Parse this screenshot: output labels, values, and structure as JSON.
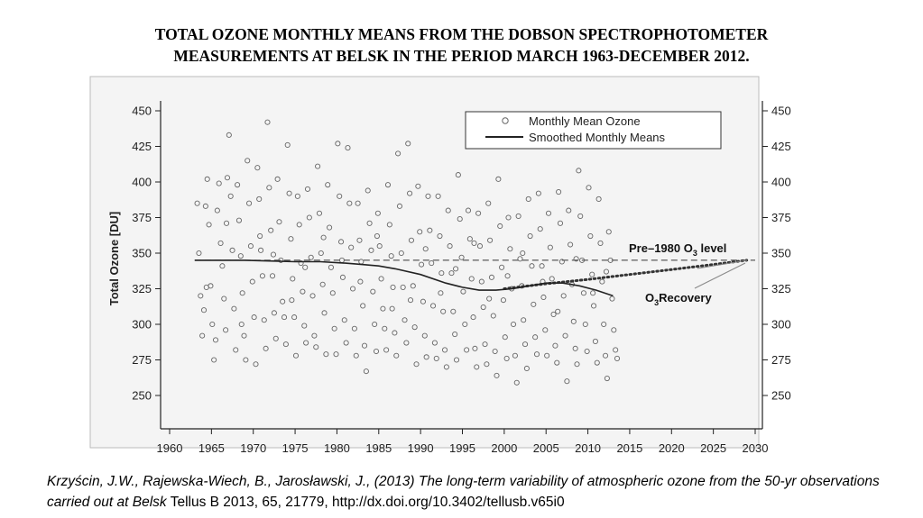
{
  "title_lines": [
    "TOTAL OZONE MONTHLY MEANS FROM THE DOBSON SPECTROPHOTOMETER",
    "MEASUREMENTS AT BELSK IN THE PERIOD MARCH 1963-DECEMBER 2012."
  ],
  "citation": {
    "italic": "Krzyścin, J.W., Rajewska-Wiech, B., Jarosławski, J., (2013) The long-term variability of atmospheric ozone from the 50-yr observations carried out at Belsk",
    "plain": " Tellus B 2013, 65, 21779, http://dx.doi.org/10.3402/tellusb.v65i0"
  },
  "chart_data": {
    "type": "scatter",
    "ylabel": "Total Ozone [DU]",
    "xlabel": "",
    "xlim": [
      1960,
      2030
    ],
    "ylim": [
      230,
      460
    ],
    "x_ticks": [
      1960,
      1965,
      1970,
      1975,
      1980,
      1985,
      1990,
      1995,
      2000,
      2005,
      2010,
      2015,
      2020,
      2025,
      2030
    ],
    "y_ticks": [
      250,
      275,
      300,
      325,
      350,
      375,
      400,
      425,
      450
    ],
    "grid": false,
    "legend": {
      "position": "top-right",
      "entries": [
        "Monthly Mean Ozone",
        "Smoothed Monthly Means"
      ]
    },
    "annotations": [
      {
        "text_parts": [
          "Pre–1980 O",
          "3",
          " level"
        ],
        "x": 2022,
        "y": 350
      },
      {
        "text_parts": [
          "O",
          "3",
          "Recovery"
        ],
        "x": 2019,
        "y": 318
      }
    ],
    "reference_line": {
      "name": "Pre–1980 O3 level",
      "y": 345,
      "x": [
        1963,
        2030
      ],
      "style": "dashed"
    },
    "smoothed_series": {
      "name": "Smoothed Monthly Means",
      "x": [
        1963,
        1966,
        1969,
        1972,
        1975,
        1978,
        1981,
        1983,
        1985,
        1987,
        1990,
        1993,
        1995,
        1997,
        1999,
        2001,
        2003,
        2005,
        2007,
        2009,
        2011,
        2013
      ],
      "y": [
        345,
        345,
        345,
        344.5,
        344,
        344,
        343,
        342,
        341,
        339,
        335,
        329,
        326,
        324,
        324,
        325,
        327,
        329,
        329,
        327,
        324,
        320
      ]
    },
    "recovery_series": {
      "name": "O3 Recovery",
      "style": "dotted",
      "x": [
        2000,
        2005,
        2010,
        2015,
        2020,
        2025,
        2029
      ],
      "y": [
        325,
        328.5,
        331.5,
        335,
        338.5,
        342,
        345
      ]
    },
    "scatter_series": {
      "name": "Monthly Mean Ozone",
      "points": [
        [
          1963.3,
          385
        ],
        [
          1963.5,
          350
        ],
        [
          1963.7,
          320
        ],
        [
          1963.9,
          292
        ],
        [
          1964.1,
          310
        ],
        [
          1964.3,
          383
        ],
        [
          1964.5,
          402
        ],
        [
          1964.7,
          370
        ],
        [
          1964.9,
          327
        ],
        [
          1965.1,
          300
        ],
        [
          1965.3,
          275
        ],
        [
          1965.5,
          289
        ],
        [
          1965.7,
          380
        ],
        [
          1965.9,
          399
        ],
        [
          1966.1,
          357
        ],
        [
          1966.3,
          341
        ],
        [
          1966.5,
          318
        ],
        [
          1966.7,
          296
        ],
        [
          1966.9,
          403
        ],
        [
          1967.1,
          433
        ],
        [
          1967.3,
          390
        ],
        [
          1967.5,
          352
        ],
        [
          1967.7,
          311
        ],
        [
          1967.9,
          282
        ],
        [
          1968.1,
          398
        ],
        [
          1968.3,
          373
        ],
        [
          1968.5,
          348
        ],
        [
          1968.7,
          322
        ],
        [
          1968.9,
          292
        ],
        [
          1969.1,
          275
        ],
        [
          1969.3,
          415
        ],
        [
          1969.5,
          385
        ],
        [
          1969.7,
          355
        ],
        [
          1969.9,
          330
        ],
        [
          1970.1,
          305
        ],
        [
          1970.3,
          272
        ],
        [
          1970.5,
          410
        ],
        [
          1970.7,
          388
        ],
        [
          1970.9,
          352
        ],
        [
          1971.1,
          334
        ],
        [
          1971.3,
          303
        ],
        [
          1971.5,
          283
        ],
        [
          1971.7,
          442
        ],
        [
          1971.9,
          396
        ],
        [
          1972.1,
          366
        ],
        [
          1972.3,
          334
        ],
        [
          1972.5,
          308
        ],
        [
          1972.7,
          290
        ],
        [
          1972.9,
          402
        ],
        [
          1973.1,
          372
        ],
        [
          1973.3,
          345
        ],
        [
          1973.5,
          316
        ],
        [
          1973.7,
          305
        ],
        [
          1973.9,
          286
        ],
        [
          1974.1,
          426
        ],
        [
          1974.3,
          392
        ],
        [
          1974.5,
          360
        ],
        [
          1974.7,
          332
        ],
        [
          1974.9,
          305
        ],
        [
          1975.1,
          278
        ],
        [
          1975.3,
          390
        ],
        [
          1975.5,
          370
        ],
        [
          1975.7,
          343
        ],
        [
          1975.9,
          323
        ],
        [
          1976.1,
          299
        ],
        [
          1976.3,
          287
        ],
        [
          1976.5,
          395
        ],
        [
          1976.7,
          375
        ],
        [
          1976.9,
          347
        ],
        [
          1977.1,
          320
        ],
        [
          1977.3,
          292
        ],
        [
          1977.5,
          284
        ],
        [
          1977.7,
          411
        ],
        [
          1977.9,
          378
        ],
        [
          1978.1,
          350
        ],
        [
          1978.3,
          328
        ],
        [
          1978.5,
          308
        ],
        [
          1978.7,
          279
        ],
        [
          1978.9,
          398
        ],
        [
          1979.1,
          368
        ],
        [
          1979.3,
          340
        ],
        [
          1979.5,
          322
        ],
        [
          1979.7,
          297
        ],
        [
          1979.9,
          279
        ],
        [
          1980.1,
          427
        ],
        [
          1980.3,
          390
        ],
        [
          1980.5,
          358
        ],
        [
          1980.7,
          333
        ],
        [
          1980.9,
          303
        ],
        [
          1981.1,
          287
        ],
        [
          1981.3,
          424
        ],
        [
          1981.5,
          385
        ],
        [
          1981.7,
          354
        ],
        [
          1981.9,
          325
        ],
        [
          1982.1,
          297
        ],
        [
          1982.3,
          278
        ],
        [
          1982.5,
          385
        ],
        [
          1982.7,
          359
        ],
        [
          1982.9,
          344
        ],
        [
          1983.1,
          313
        ],
        [
          1983.3,
          285
        ],
        [
          1983.5,
          267
        ],
        [
          1983.7,
          394
        ],
        [
          1983.9,
          371
        ],
        [
          1984.1,
          352
        ],
        [
          1984.3,
          323
        ],
        [
          1984.5,
          300
        ],
        [
          1984.7,
          281
        ],
        [
          1984.9,
          378
        ],
        [
          1985.1,
          355
        ],
        [
          1985.3,
          332
        ],
        [
          1985.5,
          311
        ],
        [
          1985.7,
          297
        ],
        [
          1985.9,
          282
        ],
        [
          1986.1,
          398
        ],
        [
          1986.3,
          370
        ],
        [
          1986.5,
          348
        ],
        [
          1986.7,
          326
        ],
        [
          1986.9,
          294
        ],
        [
          1987.1,
          278
        ],
        [
          1987.3,
          420
        ],
        [
          1987.5,
          383
        ],
        [
          1987.7,
          350
        ],
        [
          1987.9,
          326
        ],
        [
          1988.1,
          303
        ],
        [
          1988.3,
          287
        ],
        [
          1988.5,
          427
        ],
        [
          1988.7,
          392
        ],
        [
          1988.9,
          359
        ],
        [
          1989.1,
          327
        ],
        [
          1989.3,
          298
        ],
        [
          1989.5,
          272
        ],
        [
          1989.7,
          397
        ],
        [
          1989.9,
          365
        ],
        [
          1990.1,
          342
        ],
        [
          1990.3,
          316
        ],
        [
          1990.5,
          292
        ],
        [
          1990.7,
          277
        ],
        [
          1990.9,
          390
        ],
        [
          1991.1,
          366
        ],
        [
          1991.3,
          343
        ],
        [
          1991.5,
          313
        ],
        [
          1991.7,
          287
        ],
        [
          1991.9,
          276
        ],
        [
          1992.1,
          390
        ],
        [
          1992.3,
          362
        ],
        [
          1992.5,
          336
        ],
        [
          1992.7,
          309
        ],
        [
          1992.9,
          282
        ],
        [
          1993.1,
          270
        ],
        [
          1993.3,
          380
        ],
        [
          1993.5,
          355
        ],
        [
          1993.7,
          336
        ],
        [
          1993.9,
          309
        ],
        [
          1994.1,
          293
        ],
        [
          1994.3,
          275
        ],
        [
          1994.5,
          405
        ],
        [
          1994.7,
          374
        ],
        [
          1994.9,
          347
        ],
        [
          1995.1,
          323
        ],
        [
          1995.3,
          300
        ],
        [
          1995.5,
          282
        ],
        [
          1995.7,
          380
        ],
        [
          1995.9,
          360
        ],
        [
          1996.1,
          332
        ],
        [
          1996.3,
          305
        ],
        [
          1996.5,
          283
        ],
        [
          1996.7,
          270
        ],
        [
          1996.9,
          378
        ],
        [
          1997.1,
          355
        ],
        [
          1997.3,
          330
        ],
        [
          1997.5,
          312
        ],
        [
          1997.7,
          286
        ],
        [
          1997.9,
          272
        ],
        [
          1998.1,
          385
        ],
        [
          1998.3,
          359
        ],
        [
          1998.5,
          333
        ],
        [
          1998.7,
          306
        ],
        [
          1998.9,
          281
        ],
        [
          1999.1,
          264
        ],
        [
          1999.3,
          402
        ],
        [
          1999.5,
          369
        ],
        [
          1999.7,
          340
        ],
        [
          1999.9,
          317
        ],
        [
          2000.1,
          291
        ],
        [
          2000.3,
          276
        ],
        [
          2000.5,
          375
        ],
        [
          2000.7,
          353
        ],
        [
          2000.9,
          325
        ],
        [
          2001.1,
          300
        ],
        [
          2001.3,
          278
        ],
        [
          2001.5,
          259
        ],
        [
          2001.7,
          376
        ],
        [
          2001.9,
          346
        ],
        [
          2002.1,
          327
        ],
        [
          2002.3,
          303
        ],
        [
          2002.5,
          286
        ],
        [
          2002.7,
          269
        ],
        [
          2002.9,
          388
        ],
        [
          2003.1,
          362
        ],
        [
          2003.3,
          341
        ],
        [
          2003.5,
          314
        ],
        [
          2003.7,
          291
        ],
        [
          2003.9,
          279
        ],
        [
          2004.1,
          392
        ],
        [
          2004.3,
          367
        ],
        [
          2004.5,
          341
        ],
        [
          2004.7,
          319
        ],
        [
          2004.9,
          296
        ],
        [
          2005.1,
          278
        ],
        [
          2005.3,
          378
        ],
        [
          2005.5,
          354
        ],
        [
          2005.7,
          332
        ],
        [
          2005.9,
          307
        ],
        [
          2006.1,
          285
        ],
        [
          2006.3,
          273
        ],
        [
          2006.5,
          393
        ],
        [
          2006.7,
          371
        ],
        [
          2006.9,
          344
        ],
        [
          2007.1,
          320
        ],
        [
          2007.3,
          292
        ],
        [
          2007.5,
          260
        ],
        [
          2007.7,
          380
        ],
        [
          2007.9,
          356
        ],
        [
          2008.1,
          328
        ],
        [
          2008.3,
          302
        ],
        [
          2008.5,
          283
        ],
        [
          2008.7,
          272
        ],
        [
          2008.9,
          408
        ],
        [
          2009.1,
          376
        ],
        [
          2009.3,
          345
        ],
        [
          2009.5,
          322
        ],
        [
          2009.7,
          300
        ],
        [
          2009.9,
          281
        ],
        [
          2010.1,
          396
        ],
        [
          2010.3,
          362
        ],
        [
          2010.5,
          335
        ],
        [
          2010.7,
          313
        ],
        [
          2010.9,
          288
        ],
        [
          2011.1,
          273
        ],
        [
          2011.3,
          388
        ],
        [
          2011.5,
          357
        ],
        [
          2011.7,
          330
        ],
        [
          2011.9,
          300
        ],
        [
          2012.1,
          278
        ],
        [
          2012.3,
          262
        ],
        [
          2012.5,
          365
        ],
        [
          2012.7,
          345
        ],
        [
          2012.9,
          318
        ],
        [
          2013.1,
          296
        ],
        [
          2013.3,
          282
        ],
        [
          2013.5,
          276
        ],
        [
          1964.4,
          326
        ],
        [
          1966.8,
          371
        ],
        [
          1968.6,
          300
        ],
        [
          1970.8,
          362
        ],
        [
          1972.4,
          349
        ],
        [
          1974.6,
          317
        ],
        [
          1976.2,
          340
        ],
        [
          1978.4,
          361
        ],
        [
          1980.6,
          345
        ],
        [
          1982.8,
          330
        ],
        [
          1984.8,
          362
        ],
        [
          1986.6,
          311
        ],
        [
          1988.8,
          317
        ],
        [
          1990.6,
          353
        ],
        [
          1992.4,
          322
        ],
        [
          1994.2,
          339
        ],
        [
          1996.4,
          357
        ],
        [
          1998.2,
          318
        ],
        [
          2000.4,
          334
        ],
        [
          2002.2,
          350
        ],
        [
          2004.6,
          330
        ],
        [
          2006.4,
          309
        ],
        [
          2008.6,
          346
        ],
        [
          2010.6,
          322
        ],
        [
          2012.2,
          337
        ]
      ]
    }
  }
}
